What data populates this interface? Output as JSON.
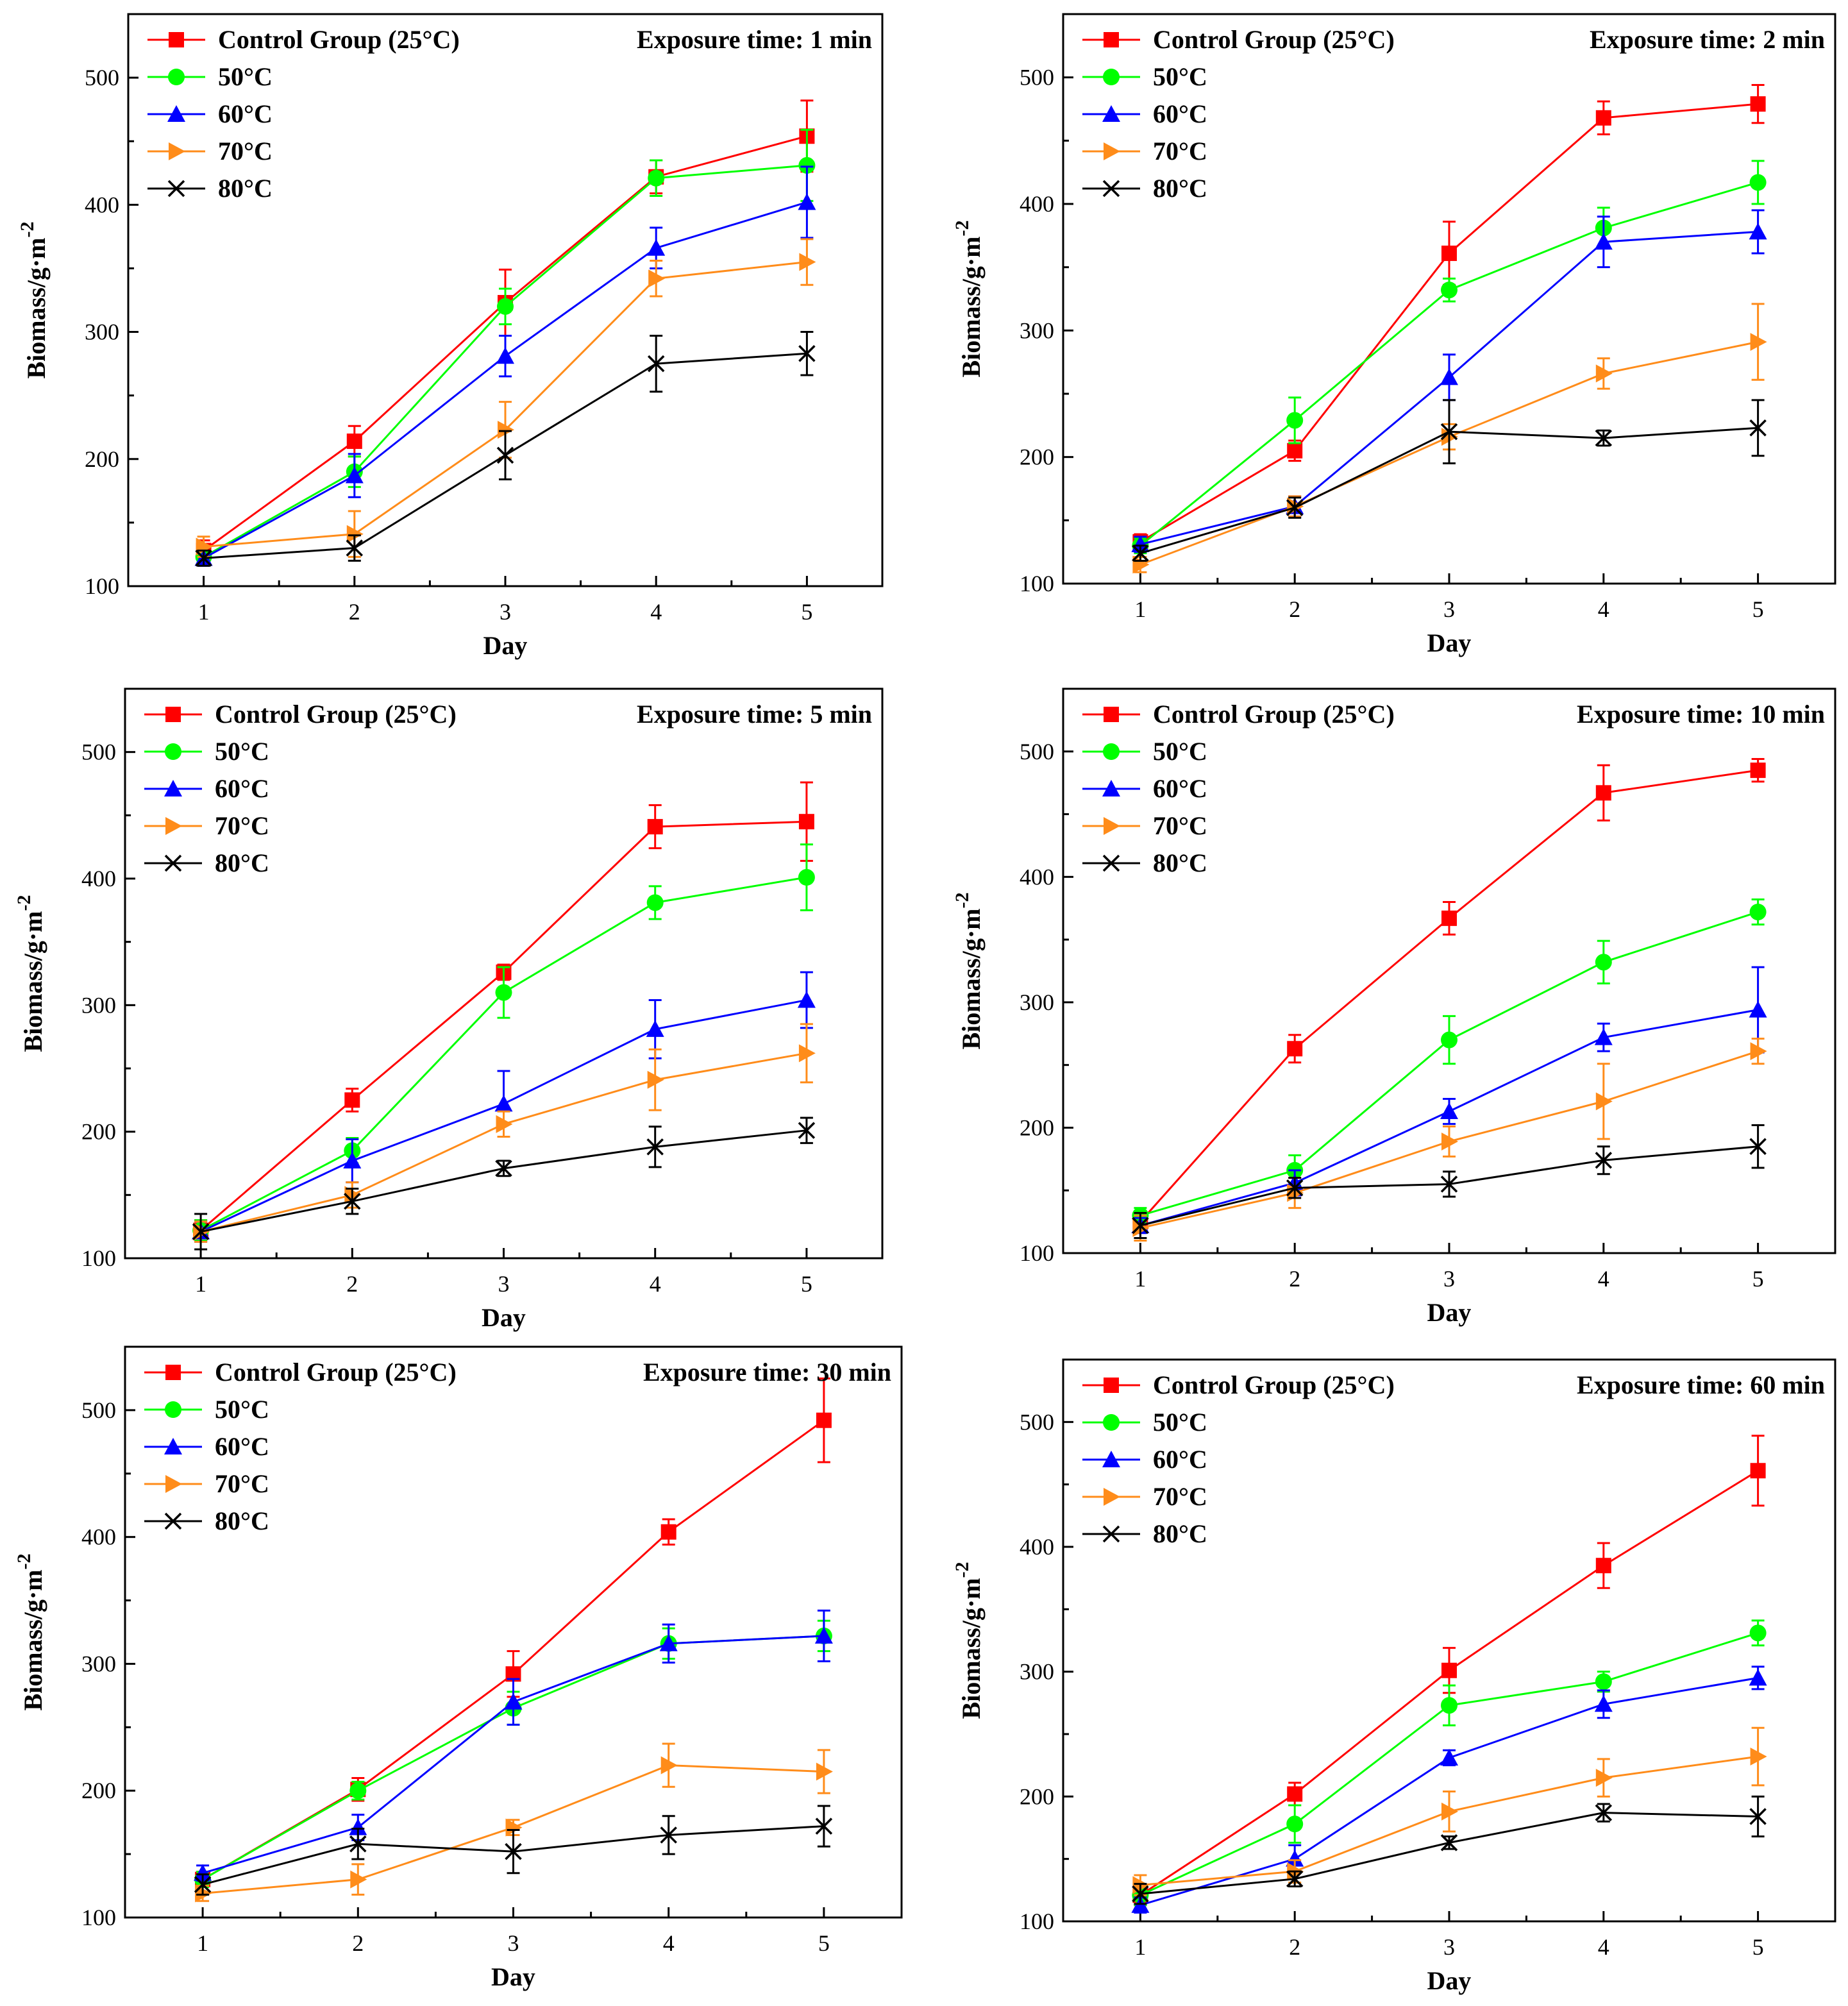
{
  "figure": {
    "series_styles": [
      {
        "name": "Control Group (25°C)",
        "color": "#ff0000",
        "marker": "square"
      },
      {
        "name": "50°C",
        "color": "#00ff00",
        "marker": "circle"
      },
      {
        "name": "60°C",
        "color": "#0000ff",
        "marker": "triangle-up"
      },
      {
        "name": "70°C",
        "color": "#ff8c1a",
        "marker": "triangle-right"
      },
      {
        "name": "80°C",
        "color": "#000000",
        "marker": "x"
      }
    ],
    "legend_labels": [
      "Control Group (25°C)",
      "50°C",
      "60°C",
      "70°C",
      "80°C"
    ],
    "annotation_prefix": "Exposure time: "
  },
  "chart_data": [
    {
      "type": "line",
      "exposure_label": "Exposure time: 1 min",
      "xlabel": "Day",
      "ylabel": "Biomass/g·m",
      "ylabel_superscript": "-2",
      "x": [
        1,
        2,
        3,
        4,
        5
      ],
      "xlim": [
        0.5,
        5.5
      ],
      "ylim": [
        100,
        550
      ],
      "yticks": [
        100,
        200,
        300,
        400,
        500
      ],
      "series": [
        {
          "name": "Control Group (25°C)",
          "values": [
            128,
            214,
            323,
            422,
            454
          ],
          "errors": [
            8,
            12,
            26,
            13,
            28
          ]
        },
        {
          "name": "50°C",
          "values": [
            123,
            190,
            320,
            421,
            431
          ],
          "errors": [
            5,
            12,
            14,
            14,
            28
          ]
        },
        {
          "name": "60°C",
          "values": [
            122,
            187,
            281,
            366,
            402
          ],
          "errors": [
            6,
            17,
            16,
            16,
            28
          ]
        },
        {
          "name": "70°C",
          "values": [
            131,
            141,
            223,
            342,
            355
          ],
          "errors": [
            8,
            18,
            22,
            14,
            18
          ]
        },
        {
          "name": "80°C",
          "values": [
            122,
            130,
            203,
            275,
            283
          ],
          "errors": [
            6,
            10,
            19,
            22,
            17
          ]
        }
      ]
    },
    {
      "type": "line",
      "exposure_label": "Exposure time: 2 min",
      "xlabel": "Day",
      "ylabel": "Biomass/g·m",
      "ylabel_superscript": "-2",
      "x": [
        1,
        2,
        3,
        4,
        5
      ],
      "xlim": [
        0.5,
        5.5
      ],
      "ylim": [
        100,
        550
      ],
      "yticks": [
        100,
        200,
        300,
        400,
        500
      ],
      "series": [
        {
          "name": "Control Group (25°C)",
          "values": [
            133,
            205,
            361,
            468,
            479
          ],
          "errors": [
            6,
            8,
            25,
            13,
            15
          ]
        },
        {
          "name": "50°C",
          "values": [
            130,
            229,
            332,
            381,
            417
          ],
          "errors": [
            6,
            18,
            9,
            16,
            17
          ]
        },
        {
          "name": "60°C",
          "values": [
            131,
            161,
            263,
            370,
            378
          ],
          "errors": [
            6,
            8,
            18,
            20,
            17
          ]
        },
        {
          "name": "70°C",
          "values": [
            115,
            161,
            216,
            266,
            291
          ],
          "errors": [
            6,
            8,
            10,
            12,
            30
          ]
        },
        {
          "name": "80°C",
          "values": [
            124,
            160,
            220,
            215,
            223
          ],
          "errors": [
            6,
            8,
            25,
            6,
            22
          ]
        }
      ]
    },
    {
      "type": "line",
      "exposure_label": "Exposure time: 5 min",
      "xlabel": "Day",
      "ylabel": "Biomass/g·m",
      "ylabel_superscript": "-2",
      "x": [
        1,
        2,
        3,
        4,
        5
      ],
      "xlim": [
        0.5,
        5.5
      ],
      "ylim": [
        100,
        550
      ],
      "yticks": [
        100,
        200,
        300,
        400,
        500
      ],
      "series": [
        {
          "name": "Control Group (25°C)",
          "values": [
            122,
            225,
            326,
            441,
            445
          ],
          "errors": [
            8,
            9,
            6,
            17,
            31
          ]
        },
        {
          "name": "50°C",
          "values": [
            122,
            185,
            310,
            381,
            401
          ],
          "errors": [
            8,
            10,
            20,
            13,
            26
          ]
        },
        {
          "name": "60°C",
          "values": [
            121,
            177,
            222,
            281,
            304
          ],
          "errors": [
            8,
            17,
            26,
            23,
            22
          ]
        },
        {
          "name": "70°C",
          "values": [
            121,
            150,
            206,
            241,
            262
          ],
          "errors": [
            8,
            10,
            10,
            24,
            23
          ]
        },
        {
          "name": "80°C",
          "values": [
            121,
            145,
            171,
            188,
            201
          ],
          "errors": [
            14,
            10,
            6,
            16,
            10
          ]
        }
      ]
    },
    {
      "type": "line",
      "exposure_label": "Exposure time: 10 min",
      "xlabel": "Day",
      "ylabel": "Biomass/g·m",
      "ylabel_superscript": "-2",
      "x": [
        1,
        2,
        3,
        4,
        5
      ],
      "xlim": [
        0.5,
        5.5
      ],
      "ylim": [
        100,
        550
      ],
      "yticks": [
        100,
        200,
        300,
        400,
        500
      ],
      "series": [
        {
          "name": "Control Group (25°C)",
          "values": [
            125,
            263,
            367,
            467,
            485
          ],
          "errors": [
            8,
            11,
            13,
            22,
            9
          ]
        },
        {
          "name": "50°C",
          "values": [
            130,
            166,
            270,
            332,
            372
          ],
          "errors": [
            6,
            12,
            19,
            17,
            10
          ]
        },
        {
          "name": "60°C",
          "values": [
            122,
            156,
            213,
            272,
            294
          ],
          "errors": [
            6,
            10,
            10,
            11,
            34
          ]
        },
        {
          "name": "70°C",
          "values": [
            120,
            148,
            189,
            221,
            261
          ],
          "errors": [
            10,
            12,
            12,
            30,
            10
          ]
        },
        {
          "name": "80°C",
          "values": [
            122,
            152,
            155,
            174,
            185
          ],
          "errors": [
            10,
            8,
            10,
            11,
            17
          ]
        }
      ]
    },
    {
      "type": "line",
      "exposure_label": "Exposure time: 30 min",
      "xlabel": "Day",
      "ylabel": "Biomass/g·m",
      "ylabel_superscript": "-2",
      "x": [
        1,
        2,
        3,
        4,
        5
      ],
      "xlim": [
        0.5,
        5.5
      ],
      "ylim": [
        100,
        550
      ],
      "yticks": [
        100,
        200,
        300,
        400,
        500
      ],
      "series": [
        {
          "name": "Control Group (25°C)",
          "values": [
            130,
            201,
            292,
            404,
            492
          ],
          "errors": [
            6,
            9,
            18,
            10,
            33
          ]
        },
        {
          "name": "50°C",
          "values": [
            130,
            200,
            265,
            316,
            322
          ],
          "errors": [
            6,
            7,
            13,
            12,
            12
          ]
        },
        {
          "name": "60°C",
          "values": [
            135,
            171,
            270,
            316,
            322
          ],
          "errors": [
            6,
            10,
            18,
            15,
            20
          ]
        },
        {
          "name": "70°C",
          "values": [
            119,
            130,
            171,
            220,
            215
          ],
          "errors": [
            6,
            12,
            6,
            17,
            17
          ]
        },
        {
          "name": "80°C",
          "values": [
            126,
            158,
            152,
            165,
            172
          ],
          "errors": [
            8,
            12,
            17,
            15,
            16
          ]
        }
      ]
    },
    {
      "type": "line",
      "exposure_label": "Exposure time: 60 min",
      "xlabel": "Day",
      "ylabel": "Biomass/g·m",
      "ylabel_superscript": "-2",
      "x": [
        1,
        2,
        3,
        4,
        5
      ],
      "xlim": [
        0.5,
        5.5
      ],
      "ylim": [
        100,
        550
      ],
      "yticks": [
        100,
        200,
        300,
        400,
        500
      ],
      "series": [
        {
          "name": "Control Group (25°C)",
          "values": [
            121,
            202,
            301,
            385,
            461
          ],
          "errors": [
            8,
            9,
            18,
            18,
            28
          ]
        },
        {
          "name": "50°C",
          "values": [
            121,
            178,
            273,
            292,
            331
          ],
          "errors": [
            8,
            15,
            16,
            8,
            10
          ]
        },
        {
          "name": "60°C",
          "values": [
            113,
            150,
            231,
            274,
            295
          ],
          "errors": [
            6,
            11,
            6,
            11,
            9
          ]
        },
        {
          "name": "70°C",
          "values": [
            129,
            140,
            188,
            215,
            232
          ],
          "errors": [
            8,
            9,
            16,
            15,
            23
          ]
        },
        {
          "name": "80°C",
          "values": [
            122,
            134,
            163,
            187,
            184
          ],
          "errors": [
            8,
            6,
            5,
            7,
            16
          ]
        }
      ]
    }
  ]
}
